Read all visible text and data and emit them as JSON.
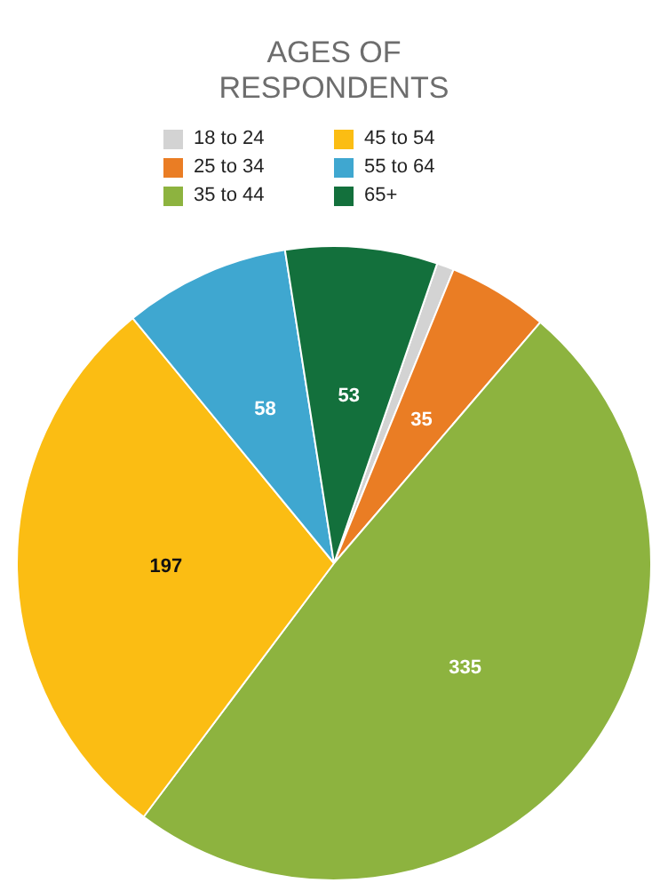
{
  "chart_data": {
    "type": "pie",
    "title": "AGES OF RESPONDENTS",
    "categories": [
      "18 to 24",
      "25 to 34",
      "35 to 44",
      "45 to 54",
      "55 to 64",
      "65+"
    ],
    "values": [
      6,
      35,
      335,
      197,
      58,
      53
    ],
    "value_labels": [
      null,
      "35",
      "335",
      "197",
      "58",
      "53"
    ],
    "colors": [
      "#d3d3d3",
      "#ea7d24",
      "#8db33f",
      "#fbbd13",
      "#3fa7d0",
      "#13703c"
    ],
    "legend": "top"
  }
}
